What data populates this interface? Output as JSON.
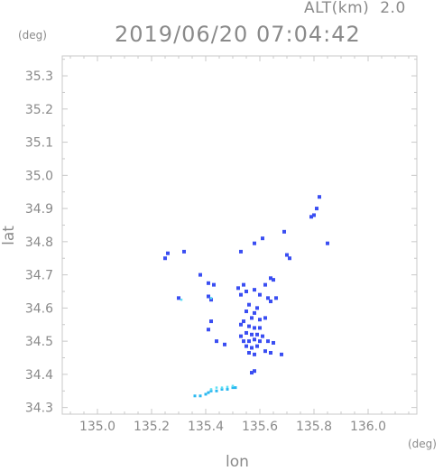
{
  "header": {
    "alt_label": "ALT(km)",
    "alt_value": "2.0",
    "timestamp": "2019/06/20 07:04:42",
    "y_unit": "(deg)",
    "x_unit": "(deg)"
  },
  "axes": {
    "xlabel": "lon",
    "ylabel": "lat",
    "xlim": [
      134.87,
      136.18
    ],
    "ylim": [
      34.28,
      35.36
    ],
    "xticks": [
      "135.0",
      "135.2",
      "135.4",
      "135.6",
      "135.8",
      "136.0"
    ],
    "yticks": [
      "34.3",
      "34.4",
      "34.5",
      "34.6",
      "34.7",
      "34.8",
      "34.9",
      "35.0",
      "35.1",
      "35.2",
      "35.3"
    ]
  },
  "colors": {
    "frame": "#c8c8c8",
    "text": "#8a8a8a",
    "echo_main": "#3a4ef2",
    "echo_light": "#2ab8f0",
    "echo_cyan": "#5fe0f5"
  },
  "chart_data": {
    "type": "scatter",
    "title": "2019/06/20 07:04:42",
    "xlabel": "lon",
    "ylabel": "lat",
    "xlim": [
      134.87,
      136.18
    ],
    "ylim": [
      34.28,
      35.36
    ],
    "grid": false,
    "series": [
      {
        "points": [
          [
            135.82,
            34.935
          ],
          [
            135.81,
            34.9
          ],
          [
            135.8,
            34.88
          ],
          [
            135.79,
            34.875
          ],
          [
            135.85,
            34.795
          ],
          [
            135.69,
            34.83
          ],
          [
            135.61,
            34.81
          ],
          [
            135.58,
            34.795
          ],
          [
            135.71,
            34.75
          ],
          [
            135.7,
            34.76
          ],
          [
            135.26,
            34.765
          ],
          [
            135.25,
            34.75
          ],
          [
            135.32,
            34.77
          ],
          [
            135.53,
            34.77
          ],
          [
            135.38,
            34.7
          ],
          [
            135.41,
            34.675
          ],
          [
            135.43,
            34.67
          ],
          [
            135.64,
            34.69
          ],
          [
            135.65,
            34.685
          ],
          [
            135.62,
            34.67
          ],
          [
            135.54,
            34.67
          ],
          [
            135.55,
            34.65
          ],
          [
            135.52,
            34.66
          ],
          [
            135.53,
            34.64
          ],
          [
            135.58,
            34.655
          ],
          [
            135.6,
            34.64
          ],
          [
            135.63,
            34.63
          ],
          [
            135.66,
            34.63
          ],
          [
            135.64,
            34.62
          ],
          [
            135.3,
            34.63
          ],
          [
            135.41,
            34.635
          ],
          [
            135.42,
            34.625
          ],
          [
            135.56,
            34.61
          ],
          [
            135.59,
            34.6
          ],
          [
            135.58,
            34.585
          ],
          [
            135.55,
            34.59
          ],
          [
            135.57,
            34.57
          ],
          [
            135.6,
            34.565
          ],
          [
            135.62,
            34.57
          ],
          [
            135.54,
            34.56
          ],
          [
            135.53,
            34.55
          ],
          [
            135.56,
            34.545
          ],
          [
            135.58,
            34.54
          ],
          [
            135.6,
            34.54
          ],
          [
            135.55,
            34.525
          ],
          [
            135.57,
            34.52
          ],
          [
            135.59,
            34.52
          ],
          [
            135.61,
            34.515
          ],
          [
            135.53,
            34.515
          ],
          [
            135.54,
            34.5
          ],
          [
            135.56,
            34.5
          ],
          [
            135.58,
            34.505
          ],
          [
            135.6,
            34.5
          ],
          [
            135.63,
            34.5
          ],
          [
            135.65,
            34.495
          ],
          [
            135.55,
            34.485
          ],
          [
            135.57,
            34.48
          ],
          [
            135.59,
            34.485
          ],
          [
            135.62,
            34.47
          ],
          [
            135.64,
            34.465
          ],
          [
            135.56,
            34.465
          ],
          [
            135.58,
            34.46
          ],
          [
            135.42,
            34.56
          ],
          [
            135.41,
            34.535
          ],
          [
            135.44,
            34.5
          ],
          [
            135.47,
            34.49
          ],
          [
            135.68,
            34.46
          ],
          [
            135.58,
            34.41
          ],
          [
            135.57,
            34.405
          ]
        ]
      },
      {
        "points": [
          [
            135.36,
            34.335
          ],
          [
            135.38,
            34.335
          ],
          [
            135.4,
            34.34
          ],
          [
            135.41,
            34.345
          ],
          [
            135.42,
            34.35
          ],
          [
            135.44,
            34.35
          ],
          [
            135.46,
            34.355
          ],
          [
            135.48,
            34.355
          ],
          [
            135.5,
            34.36
          ],
          [
            135.51,
            34.36
          ]
        ]
      },
      {
        "points": [
          [
            135.42,
            34.355
          ],
          [
            135.44,
            34.36
          ],
          [
            135.46,
            34.36
          ],
          [
            135.48,
            34.362
          ],
          [
            135.5,
            34.365
          ],
          [
            135.31,
            34.625
          ],
          [
            135.42,
            34.63
          ]
        ]
      }
    ]
  }
}
